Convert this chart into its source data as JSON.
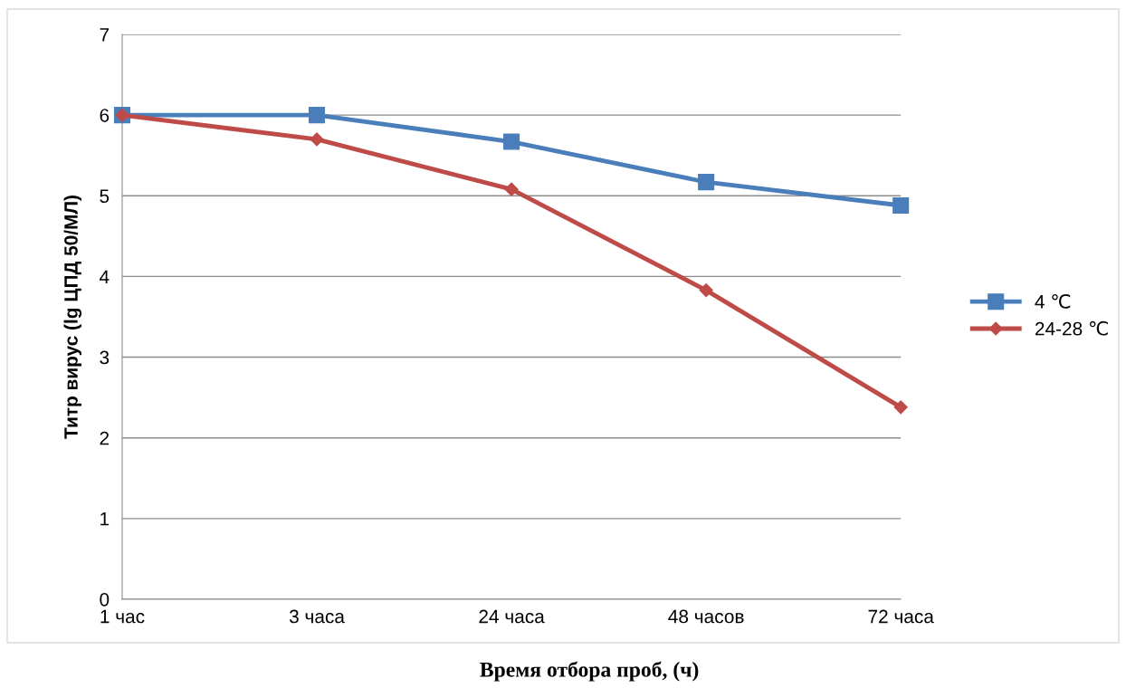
{
  "chart_data": {
    "type": "line",
    "xlabel": "Время отбора проб, (ч)",
    "ylabel": "Титр вирус (lg ЦПД 50/МЛ)",
    "categories": [
      "1 час",
      "3 часа",
      "24 часа",
      "48 часов",
      "72 часа"
    ],
    "series": [
      {
        "name": "4 ℃",
        "color": "#4a7ebb",
        "marker": "square",
        "values": [
          6,
          6,
          5.67,
          5.17,
          4.88
        ]
      },
      {
        "name": "24-28 ℃",
        "color": "#be4b48",
        "marker": "diamond",
        "values": [
          6,
          5.7,
          5.08,
          3.83,
          2.38
        ]
      }
    ],
    "ylim": [
      0,
      7
    ],
    "yticks": [
      0,
      1,
      2,
      3,
      4,
      5,
      6,
      7
    ],
    "grid": "y",
    "legend": "right",
    "line_style": "solid"
  }
}
